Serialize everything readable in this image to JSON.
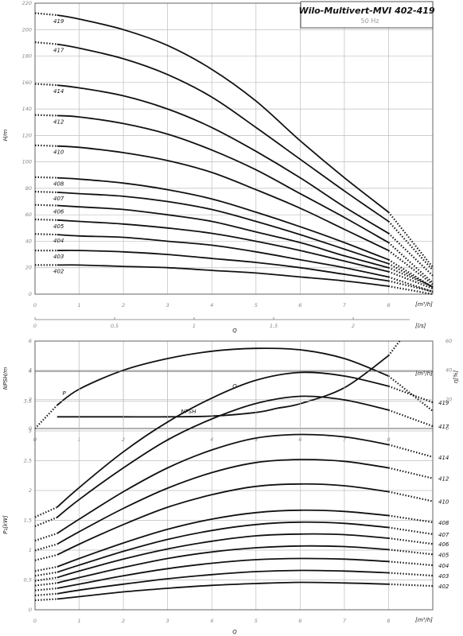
{
  "header": {
    "title": "Wilo-Multivert-MVI 402-419",
    "frequency": "50 Hz"
  },
  "axis_labels": {
    "h": "H/m",
    "q_m3h": "[m³/h]",
    "q_ls": "[l/s]",
    "q": "Q",
    "npsh": "NPSH/m",
    "eta": "η[%]",
    "p2": "P₂[kW]"
  },
  "chart_data": [
    {
      "type": "line",
      "id": "head",
      "ylabel": "H/m",
      "xlabel": "Q",
      "xlim": [
        0,
        9
      ],
      "ylim": [
        0,
        220
      ],
      "x_ticks": [
        0,
        1,
        2,
        3,
        4,
        5,
        6,
        7,
        8
      ],
      "x_tick_labels": [
        "0",
        "1",
        "2",
        "3",
        "4",
        "5",
        "6",
        "7",
        "8"
      ],
      "y_ticks": [
        0,
        20,
        40,
        60,
        80,
        100,
        120,
        140,
        160,
        180,
        200,
        220
      ],
      "y_tick_labels": [
        "0",
        "20",
        "40",
        "60",
        "80",
        "100",
        "120",
        "140",
        "160",
        "180",
        "200",
        "220"
      ],
      "secondary_x_ticks": [
        0,
        0.5,
        1,
        1.5,
        2
      ],
      "secondary_x_tick_labels": [
        "0",
        "0,5",
        "1",
        "1,5",
        "2"
      ],
      "x": [
        0.5,
        1,
        2,
        3,
        4,
        5,
        6,
        7,
        8
      ],
      "series": [
        {
          "name": "419",
          "values": [
            211,
            208,
            200,
            188,
            170,
            146,
            116,
            88,
            62
          ]
        },
        {
          "name": "417",
          "values": [
            189,
            186,
            178,
            166,
            149,
            126,
            102,
            78,
            55
          ]
        },
        {
          "name": "414",
          "values": [
            158,
            156,
            150,
            140,
            126,
            108,
            88,
            66,
            46
          ]
        },
        {
          "name": "412",
          "values": [
            135,
            134,
            129,
            121,
            109,
            94,
            76,
            58,
            39
          ]
        },
        {
          "name": "410",
          "values": [
            112,
            111,
            107,
            101,
            92,
            79,
            65,
            49,
            33
          ]
        },
        {
          "name": "408",
          "values": [
            88,
            87,
            84,
            79,
            72,
            62,
            51,
            39,
            26
          ]
        },
        {
          "name": "407",
          "values": [
            77,
            76,
            74,
            70,
            64,
            55,
            45,
            34,
            23
          ]
        },
        {
          "name": "406",
          "values": [
            67,
            66,
            64,
            60,
            55,
            47,
            39,
            29,
            20
          ]
        },
        {
          "name": "405",
          "values": [
            56,
            55,
            53,
            50,
            46,
            40,
            33,
            25,
            17
          ]
        },
        {
          "name": "404",
          "values": [
            45,
            44,
            43,
            40,
            37,
            32,
            26,
            20,
            13
          ]
        },
        {
          "name": "403",
          "values": [
            33,
            33,
            32,
            30,
            27,
            24,
            20,
            15,
            10
          ]
        },
        {
          "name": "402",
          "values": [
            22,
            22,
            21,
            20,
            18,
            16,
            13,
            10,
            6
          ]
        }
      ]
    },
    {
      "type": "line",
      "id": "npsh-efficiency",
      "ylabel": "NPSH/m",
      "y2label": "η[%]",
      "xlabel": "Q",
      "xlim": [
        0,
        9
      ],
      "ylim": [
        0,
        6
      ],
      "y2lim": [
        0,
        60
      ],
      "x_ticks": [
        0,
        1,
        2,
        3,
        4,
        5,
        6,
        7,
        8
      ],
      "x_tick_labels": [
        "0",
        "1",
        "2",
        "3",
        "4",
        "5",
        "6",
        "7",
        "8"
      ],
      "y_ticks": [
        0,
        2,
        4,
        6
      ],
      "y_tick_labels": [
        "0",
        "2",
        "4",
        "6"
      ],
      "y2_ticks": [
        0,
        20,
        40,
        60
      ],
      "y2_tick_labels": [
        "0",
        "20",
        "40",
        "60"
      ],
      "series": [
        {
          "name": "η",
          "axis": "right",
          "x": [
            0.5,
            1,
            2,
            3,
            4,
            5,
            6,
            7,
            8
          ],
          "values": [
            16,
            27,
            40,
            48,
            53,
            55,
            54,
            48,
            36
          ]
        },
        {
          "name": "NPSH",
          "axis": "left",
          "x": [
            0.5,
            1,
            2,
            3,
            4,
            5,
            5.5,
            6,
            7,
            8
          ],
          "values": [
            0.8,
            0.8,
            0.8,
            0.8,
            0.85,
            1.1,
            1.4,
            1.7,
            2.8,
            5.0
          ]
        }
      ]
    },
    {
      "type": "line",
      "id": "power",
      "ylabel": "P₂[kW]",
      "xlabel": "Q",
      "xlim": [
        0,
        9
      ],
      "ylim": [
        0,
        4
      ],
      "x_ticks": [
        0,
        1,
        2,
        3,
        4,
        5,
        6,
        7,
        8
      ],
      "x_tick_labels": [
        "0",
        "1",
        "2",
        "3",
        "4",
        "5",
        "6",
        "7",
        "8"
      ],
      "y_ticks": [
        0,
        0.5,
        1,
        1.5,
        2,
        2.5,
        3,
        3.5,
        4
      ],
      "y_tick_labels": [
        "0",
        "0,5",
        "1",
        "1,5",
        "2",
        "2,5",
        "3",
        "3,5",
        "4"
      ],
      "x": [
        0.5,
        1,
        2,
        3,
        4,
        5,
        6,
        7,
        8
      ],
      "series": [
        {
          "name": "419",
          "values": [
            1.72,
            2.05,
            2.65,
            3.15,
            3.55,
            3.85,
            3.98,
            3.92,
            3.75
          ]
        },
        {
          "name": "417",
          "values": [
            1.55,
            1.85,
            2.38,
            2.85,
            3.2,
            3.46,
            3.58,
            3.52,
            3.35
          ]
        },
        {
          "name": "414",
          "values": [
            1.28,
            1.52,
            1.98,
            2.38,
            2.68,
            2.88,
            2.94,
            2.9,
            2.77
          ]
        },
        {
          "name": "412",
          "values": [
            1.1,
            1.31,
            1.7,
            2.04,
            2.3,
            2.47,
            2.52,
            2.49,
            2.38
          ]
        },
        {
          "name": "410",
          "values": [
            0.92,
            1.1,
            1.43,
            1.72,
            1.93,
            2.07,
            2.11,
            2.08,
            1.98
          ]
        },
        {
          "name": "408",
          "values": [
            0.72,
            0.86,
            1.12,
            1.35,
            1.52,
            1.63,
            1.67,
            1.65,
            1.58
          ]
        },
        {
          "name": "407",
          "values": [
            0.63,
            0.75,
            0.98,
            1.18,
            1.33,
            1.43,
            1.47,
            1.45,
            1.38
          ]
        },
        {
          "name": "406",
          "values": [
            0.54,
            0.65,
            0.85,
            1.02,
            1.15,
            1.24,
            1.27,
            1.26,
            1.2
          ]
        },
        {
          "name": "405",
          "values": [
            0.45,
            0.54,
            0.71,
            0.86,
            0.97,
            1.04,
            1.07,
            1.06,
            1.01
          ]
        },
        {
          "name": "404",
          "values": [
            0.36,
            0.43,
            0.57,
            0.69,
            0.78,
            0.84,
            0.86,
            0.85,
            0.81
          ]
        },
        {
          "name": "403",
          "values": [
            0.27,
            0.33,
            0.43,
            0.52,
            0.59,
            0.64,
            0.66,
            0.65,
            0.62
          ]
        },
        {
          "name": "402",
          "values": [
            0.18,
            0.22,
            0.3,
            0.36,
            0.41,
            0.44,
            0.46,
            0.45,
            0.43
          ]
        }
      ]
    }
  ]
}
